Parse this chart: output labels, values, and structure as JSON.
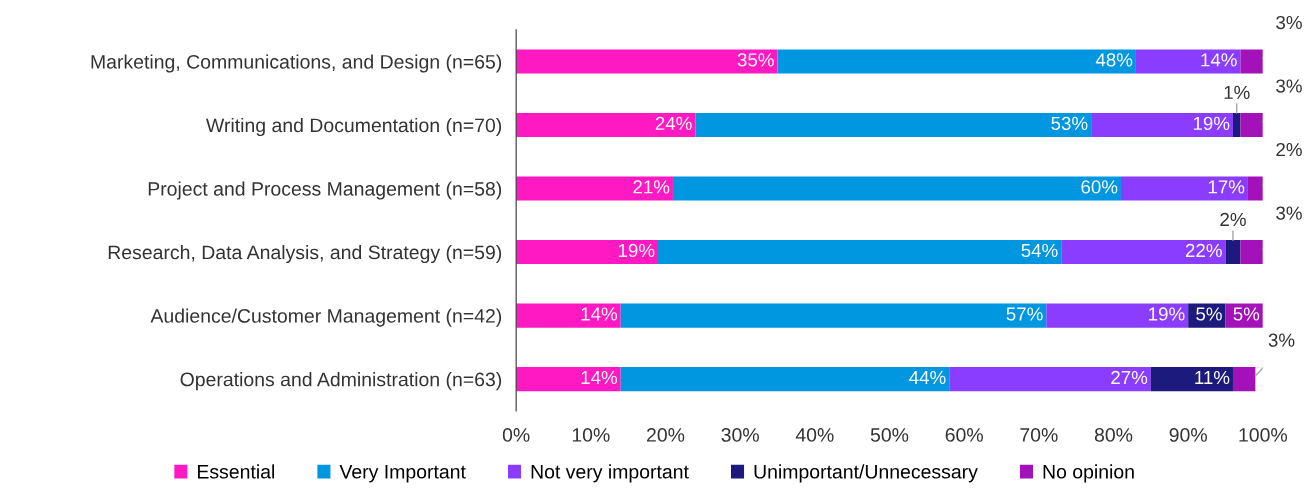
{
  "chart_data": {
    "type": "bar",
    "orientation": "horizontal",
    "stacked": true,
    "categories": [
      "Marketing, Communications, and Design (n=65)",
      "Writing and Documentation (n=70)",
      "Project and Process Management (n=58)",
      "Research, Data Analysis, and Strategy (n=59)",
      "Audience/Customer Management (n=42)",
      "Operations and Administration (n=63)"
    ],
    "series": [
      {
        "name": "Essential",
        "color": "#ff19c2",
        "values": [
          35,
          24,
          21,
          19,
          14,
          14
        ],
        "value_labels": [
          "35%",
          "24%",
          "21%",
          "19%",
          "14%",
          "14%"
        ]
      },
      {
        "name": "Very Important",
        "color": "#0096e0",
        "values": [
          48,
          53,
          60,
          54,
          57,
          44
        ],
        "value_labels": [
          "48%",
          "53%",
          "60%",
          "54%",
          "57%",
          "44%"
        ]
      },
      {
        "name": "Not very important",
        "color": "#8b3dff",
        "values": [
          14,
          19,
          17,
          22,
          19,
          27
        ],
        "value_labels": [
          "14%",
          "19%",
          "17%",
          "22%",
          "19%",
          "27%"
        ]
      },
      {
        "name": "Unimportant/Unnecessary",
        "color": "#1c1a7c",
        "values": [
          0,
          1,
          0,
          2,
          5,
          11
        ],
        "value_labels": [
          null,
          "1%",
          null,
          "2%",
          "5%",
          "11%"
        ]
      },
      {
        "name": "No opinion",
        "color": "#a312b8",
        "values": [
          3,
          3,
          2,
          3,
          5,
          3
        ],
        "value_labels": [
          "3%",
          "3%",
          "2%",
          "3%",
          "5%",
          "3%"
        ]
      }
    ],
    "xlim": [
      0,
      100
    ],
    "xticks": [
      {
        "value": 0,
        "label": "0%"
      },
      {
        "value": 10,
        "label": "10%"
      },
      {
        "value": 20,
        "label": "20%"
      },
      {
        "value": 30,
        "label": "30%"
      },
      {
        "value": 40,
        "label": "40%"
      },
      {
        "value": 50,
        "label": "50%"
      },
      {
        "value": 60,
        "label": "60%"
      },
      {
        "value": 70,
        "label": "70%"
      },
      {
        "value": 80,
        "label": "80%"
      },
      {
        "value": 90,
        "label": "90%"
      },
      {
        "value": 100,
        "label": "100%"
      }
    ],
    "grid": false,
    "legend": "bottom"
  }
}
